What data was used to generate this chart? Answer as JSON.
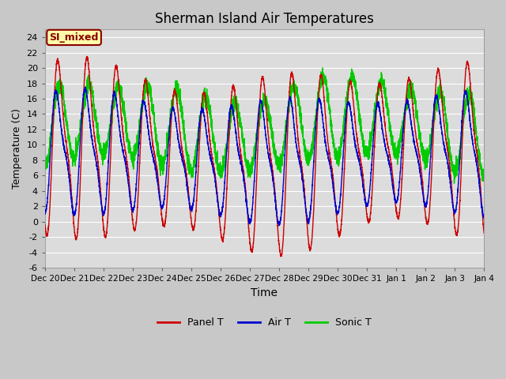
{
  "title": "Sherman Island Air Temperatures",
  "xlabel": "Time",
  "ylabel": "Temperature (C)",
  "ylim": [
    -6,
    25
  ],
  "yticks": [
    -6,
    -4,
    -2,
    0,
    2,
    4,
    6,
    8,
    10,
    12,
    14,
    16,
    18,
    20,
    22,
    24
  ],
  "annotation": "SI_mixed",
  "annotation_color": "#8B0000",
  "annotation_bg": "#FFFFAA",
  "fig_bg": "#C8C8C8",
  "plot_bg": "#DCDCDC",
  "grid_color": "#FFFFFF",
  "line_colors": {
    "panel": "#CC0000",
    "air": "#0000CC",
    "sonic": "#00CC00"
  },
  "line_widths": {
    "panel": 1.0,
    "air": 1.0,
    "sonic": 1.0
  },
  "xtick_labels": [
    "Dec 20",
    "Dec 21",
    "Dec 22",
    "Dec 23",
    "Dec 24",
    "Dec 25",
    "Dec 26",
    "Dec 27",
    "Dec 28",
    "Dec 29",
    "Dec 30",
    "Dec 31",
    "Jan 1",
    "Jan 2",
    "Jan 3",
    "Jan 4"
  ],
  "n_days": 15,
  "pts_per_day": 288
}
